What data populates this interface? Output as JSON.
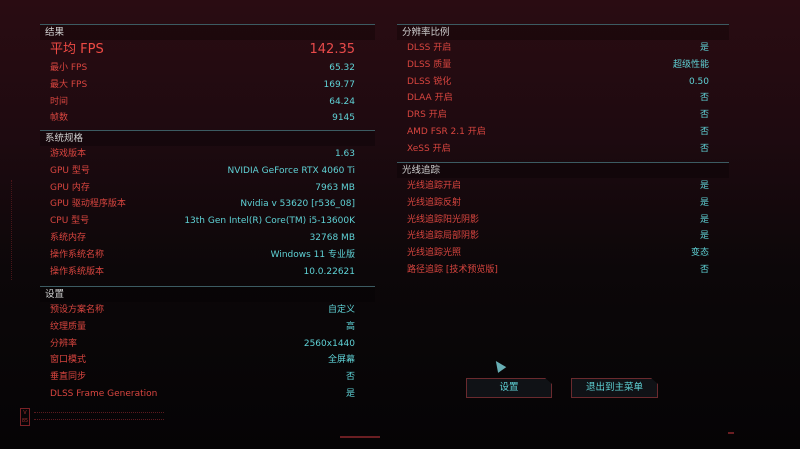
{
  "results": {
    "title": "结果",
    "avg_fps": {
      "label": "平均 FPS",
      "value": "142.35"
    },
    "rows": [
      {
        "label": "最小 FPS",
        "value": "65.32"
      },
      {
        "label": "最大 FPS",
        "value": "169.77"
      },
      {
        "label": "时间",
        "value": "64.24"
      },
      {
        "label": "帧数",
        "value": "9145"
      }
    ]
  },
  "system": {
    "title": "系统规格",
    "rows": [
      {
        "label": "游戏版本",
        "value": "1.63"
      },
      {
        "label": "GPU 型号",
        "value": "NVIDIA GeForce RTX 4060 Ti"
      },
      {
        "label": "GPU 内存",
        "value": "7963 MB"
      },
      {
        "label": "GPU 驱动程序版本",
        "value": "Nvidia v 53620 [r536_08]"
      },
      {
        "label": "CPU 型号",
        "value": "13th Gen Intel(R) Core(TM) i5-13600K"
      },
      {
        "label": "系统内存",
        "value": "32768 MB"
      },
      {
        "label": "操作系统名称",
        "value": "Windows 11 专业版"
      },
      {
        "label": "操作系统版本",
        "value": "10.0.22621"
      }
    ]
  },
  "settings": {
    "title": "设置",
    "rows": [
      {
        "label": "预设方案名称",
        "value": "自定义"
      },
      {
        "label": "纹理质量",
        "value": "高"
      },
      {
        "label": "分辨率",
        "value": "2560x1440"
      },
      {
        "label": "窗口模式",
        "value": "全屏幕"
      },
      {
        "label": "垂直同步",
        "value": "否"
      },
      {
        "label": "DLSS Frame Generation",
        "value": "是"
      }
    ]
  },
  "resolution_scaling": {
    "title": "分辨率比例",
    "rows": [
      {
        "label": "DLSS 开启",
        "value": "是"
      },
      {
        "label": "DLSS 质量",
        "value": "超级性能"
      },
      {
        "label": "DLSS 锐化",
        "value": "0.50"
      },
      {
        "label": "DLAA 开启",
        "value": "否"
      },
      {
        "label": "DRS 开启",
        "value": "否"
      },
      {
        "label": "AMD FSR 2.1 开启",
        "value": "否"
      },
      {
        "label": "XeSS 开启",
        "value": "否"
      }
    ]
  },
  "ray_tracing": {
    "title": "光线追踪",
    "rows": [
      {
        "label": "光线追踪开启",
        "value": "是"
      },
      {
        "label": "光线追踪反射",
        "value": "是"
      },
      {
        "label": "光线追踪阳光阴影",
        "value": "是"
      },
      {
        "label": "光线追踪局部阴影",
        "value": "是"
      },
      {
        "label": "光线追踪光照",
        "value": "变态"
      },
      {
        "label": "路径追踪 [技术预览版]",
        "value": "否"
      }
    ]
  },
  "buttons": {
    "settings": "设置",
    "exit": "退出到主菜单"
  },
  "colors": {
    "label": "#d8453f",
    "value": "#5fd2d6",
    "accent": "#e84a4a"
  }
}
